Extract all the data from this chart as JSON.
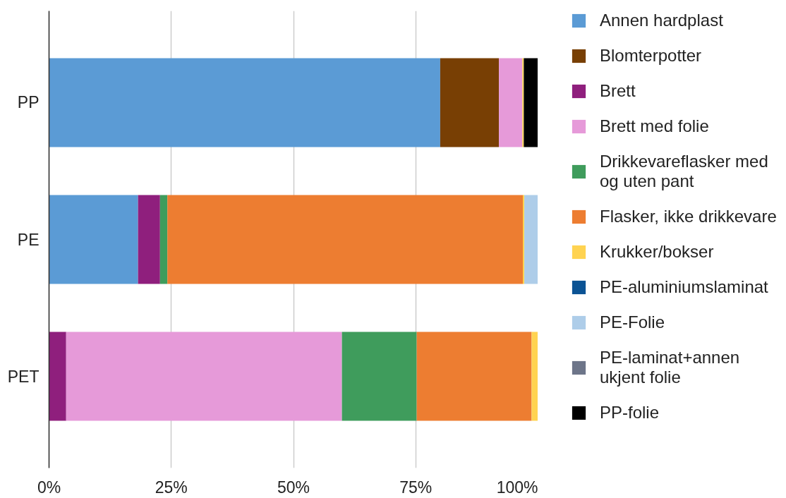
{
  "chart_data": {
    "type": "bar",
    "orientation": "horizontal",
    "stacked": true,
    "categories": [
      "PP",
      "PE",
      "PET"
    ],
    "series": [
      {
        "name": "Annen hardplast",
        "color": "#5b9bd5",
        "values": [
          80.0,
          18.2,
          null
        ]
      },
      {
        "name": "Blomterpotter",
        "color": "#783f04",
        "values": [
          12.0,
          null,
          null
        ]
      },
      {
        "name": "Brett",
        "color": "#8f1f7d",
        "values": [
          null,
          4.5,
          3.5
        ]
      },
      {
        "name": "Brett med folie",
        "color": "#e69ad9",
        "values": [
          4.8,
          null,
          56.4
        ]
      },
      {
        "name": "Drikkevareflasker med og uten pant",
        "color": "#3f9c5c",
        "values": [
          null,
          1.5,
          15.3
        ]
      },
      {
        "name": "Flasker, ikke drikkevare",
        "color": "#ed7d31",
        "values": [
          null,
          72.7,
          23.5
        ]
      },
      {
        "name": "Krukker/bokser",
        "color": "#ffd351",
        "values": [
          0.3,
          0.3,
          1.3
        ]
      },
      {
        "name": "PE-aluminiumslaminat",
        "color": "#0b5394",
        "values": [
          null,
          null,
          null
        ]
      },
      {
        "name": "PE-Folie",
        "color": "#aecde9",
        "values": [
          null,
          2.8,
          null
        ]
      },
      {
        "name": "PE-laminat+annen ukjent folie",
        "color": "#6d7589",
        "values": [
          null,
          null,
          null
        ]
      },
      {
        "name": "PP-folie",
        "color": "#000000",
        "values": [
          2.9,
          null,
          null
        ]
      }
    ],
    "xlim": [
      0,
      100
    ],
    "xticks": [
      {
        "value": 0,
        "label": "0%"
      },
      {
        "value": 25,
        "label": "25%"
      },
      {
        "value": 50,
        "label": "50%"
      },
      {
        "value": 75,
        "label": "75%"
      },
      {
        "value": 100,
        "label": "100%"
      }
    ],
    "grid": "x",
    "legend": "right"
  }
}
